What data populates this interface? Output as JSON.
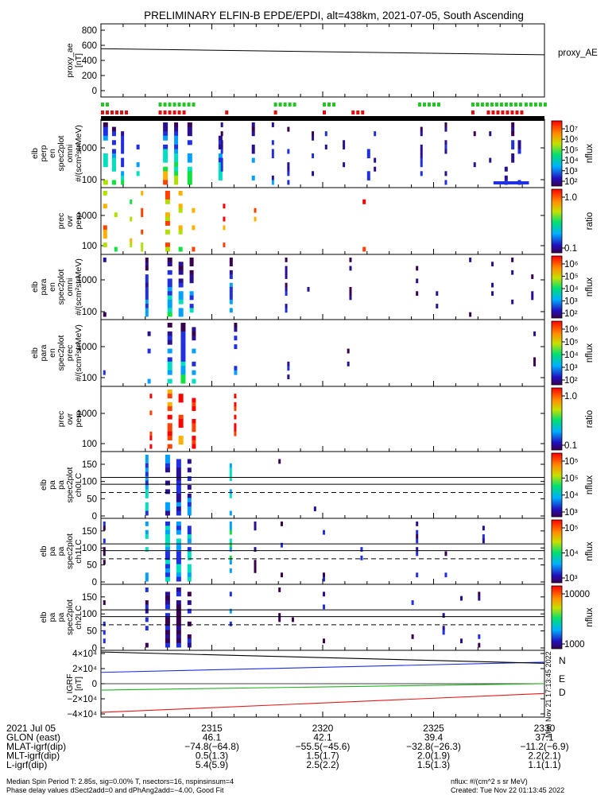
{
  "title": "PRELIMINARY ELFIN-B EPDE/EPDI, alt=438km, 2021-07-05, South Ascending",
  "colors": {
    "background": "#ffffff",
    "axes": "#000000",
    "n_component": "#1a2ee0",
    "e_component": "#1fb51f",
    "d_component": "#e01a1a",
    "flag_green": "#22c522",
    "flag_red": "#e01010"
  },
  "chart_data": [
    {
      "id": "proxy_ae",
      "type": "line",
      "ylabel": "proxy_ae\n[nT]",
      "legend": "proxy_AE",
      "yticks": [
        "800",
        "600",
        "400",
        "200",
        "0"
      ],
      "ylim": [
        0,
        850
      ],
      "x": [
        "23:10",
        "23:30"
      ],
      "values": [
        555,
        475
      ]
    },
    {
      "id": "flags",
      "type": "scatter",
      "green_segments": [
        [
          "23:10.0",
          "23:10.4"
        ],
        [
          "23:12.6",
          "23:14.2"
        ],
        [
          "23:17.8",
          "23:18.8"
        ],
        [
          "23:20.0",
          "23:20.6"
        ],
        [
          "23:24.3",
          "23:25.3"
        ],
        [
          "23:26.7",
          "23:28.9"
        ],
        [
          "23:29.1",
          "23:30.0"
        ]
      ],
      "red_segments": [
        [
          "23:10.0",
          "23:11.2"
        ],
        [
          "23:12.6",
          "23:13.7"
        ],
        [
          "23:15.6",
          "23:15.7"
        ],
        [
          "23:17.8",
          "23:18.0"
        ],
        [
          "23:20.0",
          "23:20.1"
        ],
        [
          "23:21.3",
          "23:21.9"
        ],
        [
          "23:26.7",
          "23:26.8"
        ],
        [
          "23:27.4",
          "23:29.0"
        ]
      ]
    },
    {
      "id": "perp_omni",
      "type": "heatmap",
      "ylabel": "elb\nperp\nen\nspec2plot\nomni\n#/(scm²strMeV)",
      "yticks": [
        "1000",
        "100"
      ],
      "colorbar": {
        "label": "nflux",
        "ticks": [
          "10⁷",
          "10⁶",
          "10⁵",
          "10⁴",
          "10³",
          "10²"
        ]
      }
    },
    {
      "id": "prec_ovr_perp_1",
      "type": "heatmap",
      "ylabel": "prec\novr\nperp",
      "yticks": [
        "1000",
        "100"
      ],
      "colorbar": {
        "label": "ratio",
        "ticks": [
          "1.0",
          "0.1"
        ]
      }
    },
    {
      "id": "para_omni",
      "type": "heatmap",
      "ylabel": "elb\npara\nen\nspec2plot\nomni\n#/(scm²strMeV)",
      "yticks": [
        "1000",
        "100"
      ],
      "colorbar": {
        "label": "nflux",
        "ticks": [
          "10⁶",
          "10⁵",
          "10⁴",
          "10³",
          "10²"
        ]
      }
    },
    {
      "id": "para_prec",
      "type": "heatmap",
      "ylabel": "elb\npara\nen\nspec2plot\nprec\n#/(scm²strMeV)",
      "yticks": [
        "1000",
        "100"
      ],
      "colorbar": {
        "label": "nflux",
        "ticks": [
          "10⁶",
          "10⁵",
          "10⁴",
          "10³",
          "10²"
        ]
      }
    },
    {
      "id": "prec_ovr_perp_2",
      "type": "heatmap",
      "ylabel": "prec\novr\nperp",
      "yticks": [
        "1000",
        "100"
      ],
      "colorbar": {
        "label": "ratio",
        "ticks": [
          "1.0",
          "0.1"
        ]
      }
    },
    {
      "id": "pa_ch0",
      "type": "heatmap",
      "ylabel": "elb\npa\npa\nspec2plot\nch0LC",
      "yticks": [
        "150",
        "100",
        "50",
        "0"
      ],
      "ylim": [
        0,
        180
      ],
      "lines": {
        "solid": [
          112,
          92
        ],
        "dashed": 68
      },
      "colorbar": {
        "label": "nflux",
        "ticks": [
          "10⁵",
          "10⁵",
          "10⁴",
          "10³"
        ]
      }
    },
    {
      "id": "pa_ch1",
      "type": "heatmap",
      "ylabel": "elb\npa\npa\nspec2plot\nch1LC",
      "yticks": [
        "150",
        "100",
        "50",
        "0"
      ],
      "ylim": [
        0,
        180
      ],
      "lines": {
        "solid": [
          112,
          92
        ],
        "dashed": 68
      },
      "colorbar": {
        "label": "nflux",
        "ticks": [
          "10⁵",
          "10⁴",
          "10³"
        ]
      }
    },
    {
      "id": "pa_ch2",
      "type": "heatmap",
      "ylabel": "elb\npa\npa\nspec2plot\nch2LC",
      "yticks": [
        "150",
        "100",
        "50",
        "0"
      ],
      "ylim": [
        0,
        180
      ],
      "lines": {
        "solid": [
          112,
          92
        ],
        "dashed": 68
      },
      "colorbar": {
        "label": "nflux",
        "ticks": [
          "10000",
          "1000"
        ]
      }
    },
    {
      "id": "igrf",
      "type": "line",
      "ylabel": "IGRF\n[nT]",
      "yticks": [
        "4×10⁴",
        "2×10⁴",
        "0",
        "−2×10⁴",
        "−4×10⁴"
      ],
      "ylim": [
        -40000,
        40000
      ],
      "x": [
        "23:10",
        "23:30"
      ],
      "series": [
        {
          "name": "N",
          "values": [
            15000,
            28500
          ]
        },
        {
          "name": "E",
          "values": [
            -8500,
            0
          ]
        },
        {
          "name": "D",
          "values": [
            -38000,
            -13000
          ]
        },
        {
          "name": "",
          "values": [
            42000,
            27000
          ]
        }
      ]
    }
  ],
  "xaxis": {
    "ticks": [
      "2315",
      "2320",
      "2325",
      "2330"
    ],
    "rows": [
      {
        "label": "2021 Jul 05",
        "vals": [
          "",
          "",
          "",
          ""
        ]
      },
      {
        "label": "GLON (east)",
        "vals": [
          "46.1",
          "42.1",
          "39.4",
          "37.1"
        ]
      },
      {
        "label": "MLAT-igrf(dip)",
        "vals": [
          "−74.8(−64.8)",
          "−55.5(−45.6)",
          "−32.8(−26.3)",
          "−11.2(−6.9)"
        ]
      },
      {
        "label": "MLT-igrf(dip)",
        "vals": [
          "0.5(1.3)",
          "1.5(1.7)",
          "2.0(1.9)",
          "2.2(2.1)"
        ]
      },
      {
        "label": "L-igrf(dip)",
        "vals": [
          "5.4(5.9)",
          "2.5(2.2)",
          "1.5(1.3)",
          "1.1(1.1)"
        ]
      }
    ]
  },
  "footer": {
    "line1": "Median Spin Period T: 2.85s, sig=0.00% T, nsectors=16, nspinsinsum=4",
    "line2": "Phase delay values dSect2add=0 and dPhAng2add=−4.00, Good Fit",
    "right1": "nflux: #/(cm^2 s sr MeV)",
    "right2": "Created: Tue Nov 22 01:13:45 2022",
    "stamp": "Mon Nov 21 17:13:45 2022"
  }
}
